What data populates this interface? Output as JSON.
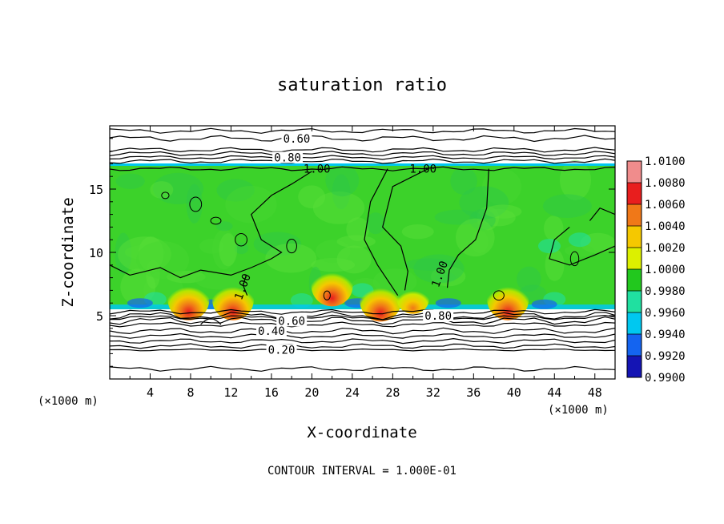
{
  "chart_data": {
    "type": "heatmap",
    "title": "saturation ratio",
    "xlabel": "X-coordinate",
    "ylabel": "Z-coordinate",
    "x_unit_left": "(×1000 m)",
    "x_unit_right": "(×1000 m)",
    "footer": "CONTOUR INTERVAL = 1.000E-01",
    "xlim": [
      0,
      50
    ],
    "ylim": [
      0,
      20
    ],
    "x_ticks": [
      4,
      8,
      12,
      16,
      20,
      24,
      28,
      32,
      36,
      40,
      44,
      48
    ],
    "x_tick_labels": [
      "4",
      "8",
      "12",
      "16",
      "20",
      "24",
      "28",
      "32",
      "36",
      "40",
      "44",
      "48"
    ],
    "y_ticks": [
      5,
      10,
      15
    ],
    "y_tick_labels": [
      "5",
      "10",
      "15"
    ],
    "colorbar": {
      "range": [
        0.99,
        1.01
      ],
      "ticks": [
        1.01,
        1.008,
        1.006,
        1.004,
        1.002,
        1.0,
        0.998,
        0.996,
        0.994,
        0.992,
        0.99
      ],
      "tick_labels": [
        "1.0100",
        "1.0080",
        "1.0060",
        "1.0040",
        "1.0020",
        "1.0000",
        "0.9980",
        "0.9960",
        "0.9940",
        "0.9920",
        "0.9900"
      ],
      "colors": [
        "#f08c8c",
        "#e81e1e",
        "#f07818",
        "#f5c800",
        "#dcf000",
        "#22c81e",
        "#20e0a0",
        "#00c8f0",
        "#1464f0",
        "#1414b4",
        "#500a8c"
      ]
    },
    "cloud_layer": {
      "z_bottom": 5.5,
      "z_top": 16.9,
      "base_color": "#3cd22a"
    },
    "hot_spots": [
      {
        "x": 7.8,
        "z": 5.9,
        "level": 1.006
      },
      {
        "x": 12.2,
        "z": 5.9,
        "level": 1.008
      },
      {
        "x": 22.0,
        "z": 7.0,
        "level": 1.006
      },
      {
        "x": 26.8,
        "z": 5.8,
        "level": 1.006
      },
      {
        "x": 30.0,
        "z": 5.9,
        "level": 1.004
      },
      {
        "x": 39.4,
        "z": 5.9,
        "level": 1.008
      }
    ],
    "contours": [
      {
        "label": "0.60",
        "z": 19.0,
        "label_x": 18.5,
        "amp": 0.15
      },
      {
        "label": "0.80",
        "z": 17.5,
        "label_x": 17.6,
        "amp": 0.1
      },
      {
        "label": "1.00",
        "z": 16.6,
        "label_x": 20.5,
        "amp": 0.1
      },
      {
        "label": "1.00",
        "z": 16.6,
        "label_x": 31.0,
        "amp": 0.0
      },
      {
        "label": "1.00",
        "z": 7.5,
        "label_x": 13.5,
        "amp": 0.0
      },
      {
        "label": "1.00",
        "z": 8.5,
        "label_x": 33.0,
        "amp": 0.0
      },
      {
        "label": "0.80",
        "z": 5.0,
        "label_x": 32.5,
        "amp": 0.2
      },
      {
        "label": "0.60",
        "z": 4.6,
        "label_x": 18.0,
        "amp": 0.2
      },
      {
        "label": "0.40",
        "z": 3.8,
        "label_x": 16.0,
        "amp": 0.15
      },
      {
        "label": "0.20",
        "z": 2.3,
        "label_x": 17.0,
        "amp": 0.05
      }
    ],
    "unlabeled_contour_levels": [
      19.6,
      18.1,
      17.8,
      17.2,
      5.3,
      4.85,
      4.3,
      3.4,
      3.0,
      2.6,
      0.8
    ]
  }
}
